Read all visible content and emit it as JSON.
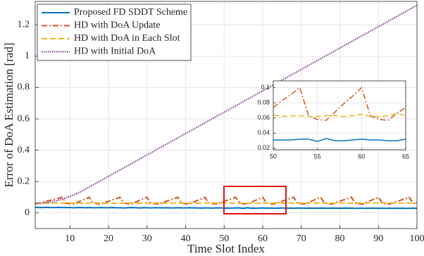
{
  "chart_data": [
    {
      "type": "line",
      "xlabel": "Time Slot Index",
      "ylabel": "Error of DoA Estimation [rad]",
      "xlim": [
        1,
        100
      ],
      "ylim": [
        -0.1,
        1.35
      ],
      "xticks": [
        10,
        20,
        30,
        40,
        50,
        60,
        70,
        80,
        90,
        100
      ],
      "yticks": [
        0,
        0.2,
        0.4,
        0.6,
        0.8,
        1,
        1.2
      ],
      "grid": true,
      "legend": "upper left",
      "x": [
        1,
        2,
        3,
        4,
        5,
        6,
        7,
        8,
        9,
        10,
        11,
        12,
        13,
        14,
        15,
        16,
        17,
        18,
        19,
        20,
        21,
        22,
        23,
        24,
        25,
        26,
        27,
        28,
        29,
        30,
        31,
        32,
        33,
        34,
        35,
        36,
        37,
        38,
        39,
        40,
        41,
        42,
        43,
        44,
        45,
        46,
        47,
        48,
        49,
        50,
        51,
        52,
        53,
        54,
        55,
        56,
        57,
        58,
        59,
        60,
        61,
        62,
        63,
        64,
        65,
        66,
        67,
        68,
        69,
        70,
        71,
        72,
        73,
        74,
        75,
        76,
        77,
        78,
        79,
        80,
        81,
        82,
        83,
        84,
        85,
        86,
        87,
        88,
        89,
        90,
        91,
        92,
        93,
        94,
        95,
        96,
        97,
        98,
        99,
        100
      ],
      "series": [
        {
          "name": "Proposed FD SDDT Scheme",
          "color": "#0072BD",
          "style": "solid",
          "values": [
            0.035,
            0.034,
            0.034,
            0.035,
            0.034,
            0.034,
            0.035,
            0.034,
            0.034,
            0.034,
            0.033,
            0.034,
            0.034,
            0.033,
            0.034,
            0.033,
            0.033,
            0.034,
            0.033,
            0.033,
            0.034,
            0.033,
            0.033,
            0.032,
            0.033,
            0.034,
            0.033,
            0.032,
            0.033,
            0.033,
            0.032,
            0.033,
            0.033,
            0.032,
            0.033,
            0.032,
            0.032,
            0.033,
            0.032,
            0.032,
            0.033,
            0.032,
            0.032,
            0.031,
            0.032,
            0.032,
            0.031,
            0.032,
            0.032,
            0.031,
            0.031,
            0.031,
            0.032,
            0.032,
            0.029,
            0.033,
            0.03,
            0.03,
            0.031,
            0.032,
            0.031,
            0.031,
            0.03,
            0.03,
            0.032,
            0.031,
            0.031,
            0.03,
            0.031,
            0.031,
            0.03,
            0.031,
            0.03,
            0.03,
            0.031,
            0.03,
            0.03,
            0.031,
            0.03,
            0.03,
            0.031,
            0.03,
            0.03,
            0.029,
            0.03,
            0.03,
            0.029,
            0.03,
            0.03,
            0.029,
            0.03,
            0.029,
            0.03,
            0.029,
            0.029,
            0.03,
            0.029,
            0.029,
            0.03,
            0.029
          ]
        },
        {
          "name": "HD with DoA Update",
          "color": "#D95319",
          "style": "dashdot",
          "values": [
            0.058,
            0.063,
            0.069,
            0.075,
            0.081,
            0.087,
            0.093,
            0.1,
            0.063,
            0.058,
            0.057,
            0.068,
            0.079,
            0.089,
            0.1,
            0.063,
            0.058,
            0.057,
            0.066,
            0.074,
            0.083,
            0.091,
            0.1,
            0.063,
            0.058,
            0.057,
            0.068,
            0.079,
            0.089,
            0.1,
            0.063,
            0.058,
            0.057,
            0.066,
            0.074,
            0.083,
            0.091,
            0.1,
            0.063,
            0.058,
            0.057,
            0.068,
            0.079,
            0.089,
            0.1,
            0.063,
            0.058,
            0.057,
            0.066,
            0.074,
            0.083,
            0.091,
            0.1,
            0.063,
            0.058,
            0.057,
            0.068,
            0.079,
            0.089,
            0.1,
            0.063,
            0.058,
            0.057,
            0.066,
            0.074,
            0.083,
            0.091,
            0.1,
            0.063,
            0.058,
            0.057,
            0.068,
            0.079,
            0.089,
            0.1,
            0.063,
            0.058,
            0.057,
            0.066,
            0.074,
            0.083,
            0.091,
            0.1,
            0.063,
            0.058,
            0.057,
            0.068,
            0.079,
            0.089,
            0.1,
            0.063,
            0.058,
            0.057,
            0.066,
            0.074,
            0.083,
            0.091,
            0.1,
            0.063,
            0.058
          ]
        },
        {
          "name": "HD with DoA in Each Slot",
          "color": "#EDB120",
          "style": "dashed",
          "values": [
            0.062,
            0.063,
            0.064,
            0.063,
            0.062,
            0.063,
            0.064,
            0.063,
            0.062,
            0.063,
            0.063,
            0.064,
            0.062,
            0.063,
            0.063,
            0.064,
            0.063,
            0.062,
            0.063,
            0.064,
            0.063,
            0.062,
            0.063,
            0.063,
            0.064,
            0.062,
            0.063,
            0.063,
            0.064,
            0.063,
            0.062,
            0.063,
            0.064,
            0.063,
            0.062,
            0.063,
            0.063,
            0.064,
            0.062,
            0.063,
            0.063,
            0.064,
            0.063,
            0.062,
            0.063,
            0.064,
            0.063,
            0.062,
            0.063,
            0.064,
            0.062,
            0.063,
            0.063,
            0.062,
            0.062,
            0.063,
            0.063,
            0.062,
            0.063,
            0.065,
            0.062,
            0.062,
            0.063,
            0.066,
            0.063,
            0.063,
            0.064,
            0.062,
            0.063,
            0.063,
            0.064,
            0.063,
            0.062,
            0.063,
            0.064,
            0.063,
            0.062,
            0.063,
            0.063,
            0.064,
            0.062,
            0.063,
            0.063,
            0.064,
            0.063,
            0.062,
            0.063,
            0.064,
            0.063,
            0.062,
            0.063,
            0.063,
            0.064,
            0.062,
            0.063,
            0.063,
            0.064,
            0.063,
            0.062,
            0.063
          ]
        },
        {
          "name": "HD with Initial DoA",
          "color": "#7E2F8E",
          "style": "dotted",
          "values": [
            0.06,
            0.061,
            0.063,
            0.066,
            0.07,
            0.075,
            0.081,
            0.088,
            0.096,
            0.105,
            0.115,
            0.126,
            0.138,
            0.151,
            0.165,
            0.179,
            0.192,
            0.206,
            0.22,
            0.233,
            0.247,
            0.261,
            0.274,
            0.288,
            0.302,
            0.315,
            0.329,
            0.342,
            0.356,
            0.37,
            0.383,
            0.397,
            0.411,
            0.424,
            0.438,
            0.452,
            0.465,
            0.479,
            0.493,
            0.506,
            0.52,
            0.534,
            0.547,
            0.561,
            0.575,
            0.588,
            0.602,
            0.616,
            0.629,
            0.643,
            0.656,
            0.67,
            0.684,
            0.697,
            0.711,
            0.725,
            0.738,
            0.752,
            0.766,
            0.779,
            0.793,
            0.807,
            0.82,
            0.834,
            0.848,
            0.861,
            0.875,
            0.889,
            0.902,
            0.916,
            0.929,
            0.943,
            0.957,
            0.97,
            0.984,
            0.998,
            1.011,
            1.025,
            1.039,
            1.052,
            1.066,
            1.08,
            1.093,
            1.107,
            1.121,
            1.134,
            1.148,
            1.162,
            1.175,
            1.189,
            1.202,
            1.216,
            1.23,
            1.243,
            1.257,
            1.271,
            1.284,
            1.298,
            1.312,
            1.325
          ]
        }
      ]
    },
    {
      "type": "line",
      "xlim": [
        50,
        65
      ],
      "ylim": [
        0.018,
        0.109
      ],
      "xticks": [
        50,
        55,
        60,
        65
      ],
      "yticks": [
        0.02,
        0.04,
        0.06,
        0.08,
        0.1
      ],
      "grid": true,
      "x": [
        50,
        51,
        52,
        53,
        54,
        55,
        56,
        57,
        58,
        59,
        60,
        61,
        62,
        63,
        64,
        65
      ],
      "series": [
        {
          "color": "#0072BD",
          "style": "solid",
          "values": [
            0.031,
            0.031,
            0.031,
            0.032,
            0.032,
            0.029,
            0.033,
            0.03,
            0.03,
            0.031,
            0.032,
            0.031,
            0.031,
            0.03,
            0.03,
            0.032
          ]
        },
        {
          "color": "#D95319",
          "style": "dashdot",
          "values": [
            0.074,
            0.083,
            0.091,
            0.1,
            0.063,
            0.058,
            0.057,
            0.068,
            0.079,
            0.089,
            0.1,
            0.063,
            0.058,
            0.057,
            0.066,
            0.074
          ]
        },
        {
          "color": "#EDB120",
          "style": "dashed",
          "values": [
            0.064,
            0.062,
            0.063,
            0.063,
            0.062,
            0.062,
            0.063,
            0.063,
            0.062,
            0.063,
            0.065,
            0.062,
            0.062,
            0.063,
            0.066,
            0.063
          ]
        }
      ]
    }
  ]
}
